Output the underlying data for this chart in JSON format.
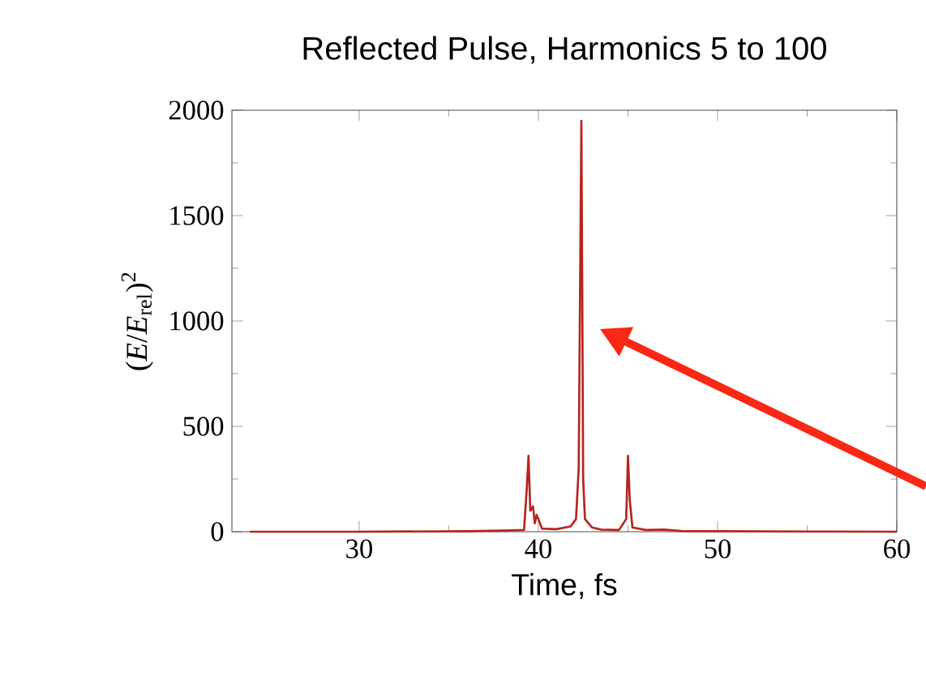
{
  "chart_data": {
    "type": "line",
    "title": "Reflected Pulse, Harmonics 5 to 100",
    "xlabel": "Time, fs",
    "ylabel": "(*E*/*E*$_{rel}$)$^{2}$",
    "xlim": [
      22.9,
      60
    ],
    "ylim": [
      0,
      2000
    ],
    "xticks": [
      30,
      40,
      50,
      60
    ],
    "yticks": [
      0,
      500,
      1000,
      1500,
      2000
    ],
    "series": [
      {
        "color": "#b5261e",
        "x": [
          23.9,
          30,
          36,
          38,
          39.2,
          39.35,
          39.45,
          39.55,
          39.7,
          39.8,
          39.9,
          40.0,
          40.2,
          41,
          41.8,
          42.1,
          42.25,
          42.4,
          42.5,
          42.6,
          43,
          43.5,
          44.5,
          44.9,
          45.0,
          45.1,
          45.25,
          46,
          47,
          48,
          55,
          60
        ],
        "values": [
          0,
          0,
          2,
          5,
          8,
          200,
          360,
          100,
          120,
          40,
          80,
          60,
          15,
          12,
          25,
          60,
          300,
          1950,
          250,
          60,
          20,
          10,
          8,
          60,
          360,
          150,
          20,
          8,
          10,
          3,
          1,
          0
        ]
      }
    ]
  }
}
